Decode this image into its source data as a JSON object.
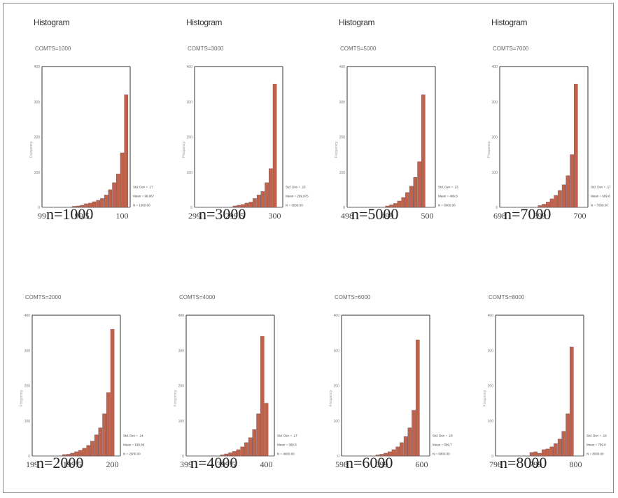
{
  "colors": {
    "bar_fill": "#c0634a",
    "bar_stroke": "#6b4a55",
    "axis": "#333333"
  },
  "chart_data": [
    {
      "type": "bar",
      "title": "Histogram",
      "subtitle": "COMTS=1000",
      "ylabel": "Frequency",
      "xticks": [
        "99",
        "99.5",
        "100"
      ],
      "xlim": [
        99,
        100.1
      ],
      "ylim": [
        0,
        400
      ],
      "yticks": [
        "400",
        "300",
        "200",
        "100",
        "0"
      ],
      "bin_centers": [
        99.4,
        99.45,
        99.5,
        99.55,
        99.6,
        99.65,
        99.7,
        99.75,
        99.8,
        99.85,
        99.9,
        99.95,
        100,
        100.05
      ],
      "values": [
        3,
        4,
        6,
        10,
        12,
        16,
        20,
        25,
        35,
        50,
        70,
        95,
        155,
        320
      ],
      "stats": [
        "Std. Dev = .17",
        "Mean = 99.867",
        "N = 1000.00"
      ],
      "n_label": "n=1000"
    },
    {
      "type": "bar",
      "title": "Histogram",
      "subtitle": "COMTS=3000",
      "ylabel": "Frequency",
      "xticks": [
        "299",
        "299.5",
        "300"
      ],
      "xlim": [
        299,
        300.1
      ],
      "ylim": [
        0,
        400
      ],
      "yticks": [
        "400",
        "300",
        "200",
        "100",
        "0"
      ],
      "bin_centers": [
        299.5,
        299.55,
        299.6,
        299.65,
        299.7,
        299.75,
        299.8,
        299.85,
        299.9,
        299.95,
        300
      ],
      "values": [
        4,
        6,
        8,
        12,
        15,
        25,
        35,
        45,
        70,
        110,
        350
      ],
      "stats": [
        "Std. Dev = .15",
        "Mean = 299.875",
        "N = 3000.00"
      ],
      "n_label": "n=3000"
    },
    {
      "type": "bar",
      "title": "Histogram",
      "subtitle": "COMTS=5000",
      "ylabel": "Frequency",
      "xticks": [
        "498",
        "499",
        "500"
      ],
      "xlim": [
        498,
        500.2
      ],
      "ylim": [
        0,
        400
      ],
      "yticks": [
        "400",
        "300",
        "200",
        "100",
        "0"
      ],
      "bin_centers": [
        499,
        499.1,
        499.2,
        499.3,
        499.4,
        499.5,
        499.6,
        499.7,
        499.8,
        499.9
      ],
      "values": [
        4,
        7,
        11,
        18,
        28,
        42,
        60,
        85,
        130,
        320
      ],
      "stats": [
        "Std. Dev = .23",
        "Mean = 499.8",
        "N = 5000.00"
      ],
      "n_label": "n=5000"
    },
    {
      "type": "bar",
      "title": "Histogram",
      "subtitle": "COMTS=7000",
      "ylabel": "Frequency",
      "xticks": [
        "698",
        "699",
        "700"
      ],
      "xlim": [
        698,
        700.2
      ],
      "ylim": [
        0,
        400
      ],
      "yticks": [
        "400",
        "300",
        "200",
        "100",
        "0"
      ],
      "bin_centers": [
        699,
        699.1,
        699.2,
        699.3,
        699.4,
        699.5,
        699.6,
        699.7,
        699.8,
        699.9
      ],
      "values": [
        5,
        9,
        15,
        24,
        34,
        48,
        64,
        90,
        150,
        350
      ],
      "stats": [
        "Std. Dev = .17",
        "Mean = 699.8",
        "N = 7000.00"
      ],
      "n_label": "n=7000"
    },
    {
      "type": "bar",
      "title": "",
      "subtitle": "COMTS=2000",
      "ylabel": "Frequency",
      "xticks": [
        "199",
        "199.5",
        "200"
      ],
      "xlim": [
        199,
        200.1
      ],
      "ylim": [
        0,
        400
      ],
      "yticks": [
        "400",
        "300",
        "200",
        "100",
        "0"
      ],
      "bin_centers": [
        199.4,
        199.45,
        199.5,
        199.55,
        199.6,
        199.65,
        199.7,
        199.75,
        199.8,
        199.85,
        199.9,
        199.95,
        200
      ],
      "values": [
        4,
        5,
        8,
        12,
        16,
        22,
        30,
        42,
        60,
        80,
        120,
        180,
        360
      ],
      "stats": [
        "Std. Dev = .14",
        "Mean = 199.89",
        "N = 2000.00"
      ],
      "n_label": "n=2000"
    },
    {
      "type": "bar",
      "title": "",
      "subtitle": "COMTS=4000",
      "ylabel": "Frequency",
      "xticks": [
        "399",
        "399.5",
        "400"
      ],
      "xlim": [
        399,
        400.1
      ],
      "ylim": [
        0,
        400
      ],
      "yticks": [
        "400",
        "300",
        "200",
        "100",
        "0"
      ],
      "bin_centers": [
        399.45,
        399.5,
        399.55,
        399.6,
        399.65,
        399.7,
        399.75,
        399.8,
        399.85,
        399.9,
        399.95,
        400
      ],
      "values": [
        3,
        6,
        9,
        13,
        18,
        26,
        38,
        52,
        75,
        120,
        340,
        150
      ],
      "stats": [
        "Std. Dev = .17",
        "Mean = 399.8",
        "N = 4000.00"
      ],
      "n_label": "n=4000"
    },
    {
      "type": "bar",
      "title": "",
      "subtitle": "COMTS=6000",
      "ylabel": "Frequency",
      "xticks": [
        "598",
        "599",
        "600"
      ],
      "xlim": [
        598,
        600.2
      ],
      "ylim": [
        0,
        400
      ],
      "yticks": [
        "400",
        "300",
        "200",
        "100",
        "0"
      ],
      "bin_centers": [
        598.9,
        599,
        599.1,
        599.2,
        599.3,
        599.4,
        599.5,
        599.6,
        599.7,
        599.8,
        599.9
      ],
      "values": [
        3,
        5,
        8,
        12,
        18,
        26,
        38,
        55,
        80,
        130,
        330
      ],
      "stats": [
        "Std. Dev = .18",
        "Mean = 599.7",
        "N = 6000.00"
      ],
      "n_label": "n=6000"
    },
    {
      "type": "bar",
      "title": "",
      "subtitle": "COMTS=8000",
      "ylabel": "Frequency",
      "xticks": [
        "798",
        "799",
        "800"
      ],
      "xlim": [
        798,
        800.2
      ],
      "ylim": [
        0,
        400
      ],
      "yticks": [
        "400",
        "300",
        "200",
        "100",
        "0"
      ],
      "bin_centers": [
        798.9,
        799,
        799.1,
        799.2,
        799.3,
        799.4,
        799.5,
        799.6,
        799.7,
        799.8,
        799.9
      ],
      "values": [
        10,
        12,
        8,
        18,
        20,
        26,
        35,
        48,
        70,
        120,
        310
      ],
      "stats": [
        "Std. Dev = .19",
        "Mean = 799.8",
        "N = 8000.00"
      ],
      "n_label": "n=8000"
    }
  ]
}
